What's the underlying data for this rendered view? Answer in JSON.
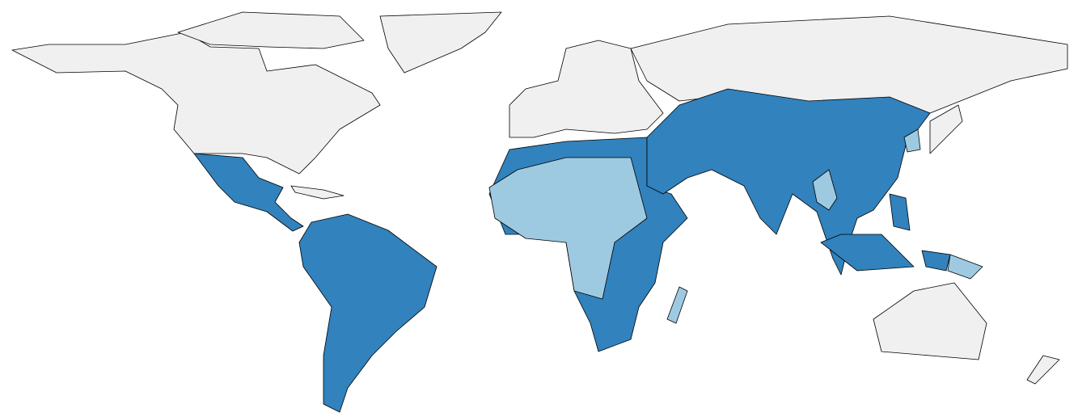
{
  "map": {
    "fills": [
      "#f0f0f0",
      "#9ecae1",
      "#3182bd"
    ],
    "stroke": "#000000"
  }
}
